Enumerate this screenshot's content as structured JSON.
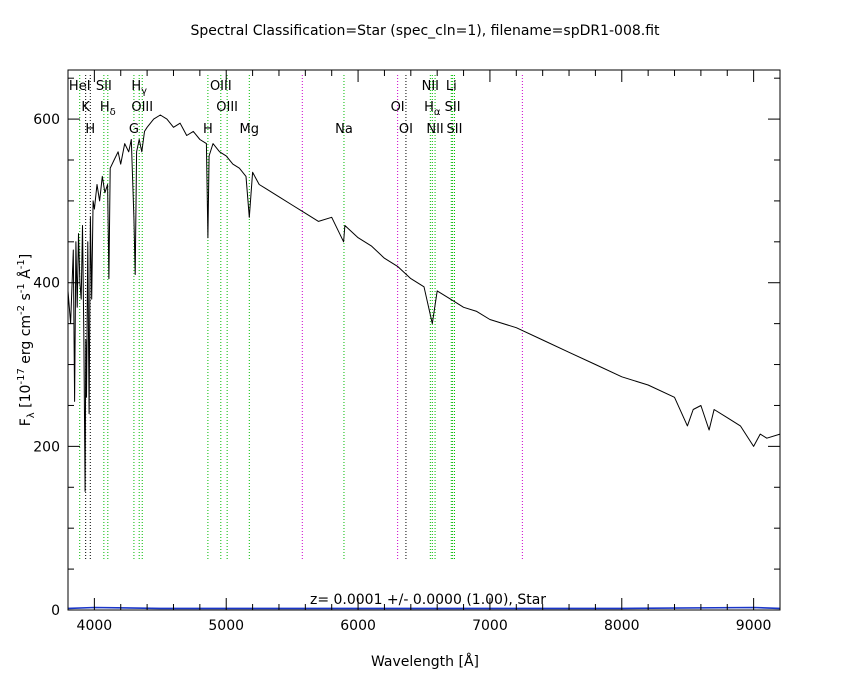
{
  "chart_data": {
    "type": "line",
    "title": "Spectral Classification=Star (spec_cln=1), filename=spDR1-008.fit",
    "xlabel": "Wavelength [Å]",
    "ylabel": "F",
    "ylabel_sub": "λ",
    "ylabel_unit_a": " [10",
    "ylabel_exp1": "-17",
    "ylabel_unit_b": " erg cm",
    "ylabel_exp2": "-2",
    "ylabel_unit_c": " s",
    "ylabel_exp3": "-1",
    "ylabel_unit_d": " Å",
    "ylabel_exp4": "-1",
    "ylabel_unit_e": "]",
    "xlim": [
      3800,
      9200
    ],
    "ylim": [
      0,
      660
    ],
    "x_ticks": [
      4000,
      5000,
      6000,
      7000,
      8000,
      9000
    ],
    "y_ticks": [
      0,
      200,
      400,
      600
    ],
    "annotation": "z= 0.0001 +/- 0.0000 (1.00), Star",
    "series": [
      {
        "color": "#000000",
        "x": [
          3800,
          3820,
          3840,
          3850,
          3860,
          3870,
          3880,
          3890,
          3900,
          3910,
          3920,
          3930,
          3935,
          3940,
          3950,
          3960,
          3970,
          3980,
          3990,
          4000,
          4020,
          4040,
          4060,
          4080,
          4100,
          4110,
          4120,
          4150,
          4180,
          4200,
          4230,
          4260,
          4280,
          4300,
          4310,
          4320,
          4340,
          4360,
          4380,
          4400,
          4450,
          4500,
          4550,
          4600,
          4650,
          4700,
          4750,
          4800,
          4850,
          4861,
          4870,
          4900,
          4950,
          5000,
          5050,
          5100,
          5150,
          5175,
          5200,
          5250,
          5300,
          5400,
          5500,
          5600,
          5700,
          5800,
          5890,
          5900,
          6000,
          6100,
          6200,
          6300,
          6400,
          6500,
          6563,
          6600,
          6700,
          6800,
          6900,
          7000,
          7200,
          7400,
          7600,
          7800,
          8000,
          8200,
          8400,
          8498,
          8542,
          8600,
          8662,
          8700,
          8800,
          8900,
          9000,
          9050,
          9100,
          9200
        ],
        "y": [
          390,
          350,
          440,
          255,
          450,
          370,
          460,
          400,
          380,
          470,
          340,
          145,
          330,
          260,
          450,
          240,
          480,
          380,
          500,
          490,
          520,
          500,
          530,
          510,
          520,
          405,
          540,
          550,
          560,
          545,
          570,
          560,
          575,
          480,
          410,
          560,
          575,
          560,
          585,
          590,
          600,
          605,
          600,
          590,
          595,
          580,
          585,
          575,
          570,
          455,
          555,
          570,
          560,
          555,
          545,
          540,
          530,
          480,
          535,
          520,
          515,
          505,
          495,
          485,
          475,
          480,
          450,
          470,
          455,
          445,
          430,
          420,
          405,
          395,
          350,
          390,
          380,
          370,
          365,
          355,
          345,
          330,
          315,
          300,
          285,
          275,
          260,
          225,
          245,
          250,
          220,
          245,
          235,
          225,
          200,
          215,
          210,
          215
        ]
      },
      {
        "color": "#1a36c8",
        "x": [
          3800,
          4000,
          4500,
          5000,
          6000,
          7000,
          8000,
          9000,
          9200
        ],
        "y": [
          2,
          3,
          2,
          2,
          2,
          2,
          2,
          3,
          2
        ]
      }
    ],
    "lines": [
      {
        "x": 3934,
        "color": "#000000",
        "style": "dot",
        "labels": [
          {
            "text": "K",
            "row": 1
          }
        ]
      },
      {
        "x": 3969,
        "color": "#000000",
        "style": "dot",
        "labels": [
          {
            "text": "H",
            "row": 2
          }
        ]
      },
      {
        "x": 3889,
        "color": "#00bb00",
        "style": "dot",
        "labels": [
          {
            "text": "HeI",
            "row": 0
          }
        ]
      },
      {
        "x": 4072,
        "color": "#00bb00",
        "style": "dot",
        "labels": [
          {
            "text": "SII",
            "row": 0
          }
        ]
      },
      {
        "x": 4102,
        "color": "#00bb00",
        "style": "dot",
        "labels": [
          {
            "text": "H",
            "sub": "δ",
            "row": 1
          }
        ]
      },
      {
        "x": 4300,
        "color": "#00bb00",
        "style": "dot",
        "labels": [
          {
            "text": "G",
            "row": 2
          }
        ]
      },
      {
        "x": 4340,
        "color": "#00bb00",
        "style": "dot",
        "labels": [
          {
            "text": "H",
            "sub": "γ",
            "row": 0
          }
        ]
      },
      {
        "x": 4363,
        "color": "#00bb00",
        "style": "dot",
        "labels": [
          {
            "text": "OIII",
            "row": 1
          }
        ]
      },
      {
        "x": 4861,
        "color": "#00bb00",
        "style": "dot",
        "labels": [
          {
            "text": "H",
            "row": 2
          }
        ]
      },
      {
        "x": 4959,
        "color": "#00bb00",
        "style": "dot",
        "labels": [
          {
            "text": "OIII",
            "row": 0
          }
        ]
      },
      {
        "x": 5007,
        "color": "#00bb00",
        "style": "dot",
        "labels": [
          {
            "text": "OIII",
            "row": 1
          }
        ]
      },
      {
        "x": 5175,
        "color": "#00bb00",
        "style": "dot",
        "labels": [
          {
            "text": "Mg",
            "row": 2
          }
        ]
      },
      {
        "x": 5577,
        "color": "#cc00cc",
        "style": "dot",
        "labels": []
      },
      {
        "x": 5893,
        "color": "#00bb00",
        "style": "dot",
        "labels": [
          {
            "text": "Na",
            "row": 2
          }
        ]
      },
      {
        "x": 6300,
        "color": "#cc00cc",
        "style": "dot",
        "labels": [
          {
            "text": "OI",
            "row": 1
          }
        ]
      },
      {
        "x": 6363,
        "color": "#000000",
        "style": "dot",
        "labels": [
          {
            "text": "OI",
            "row": 2
          }
        ]
      },
      {
        "x": 6548,
        "color": "#00bb00",
        "style": "dot",
        "labels": [
          {
            "text": "NII",
            "row": 0
          }
        ]
      },
      {
        "x": 6563,
        "color": "#00bb00",
        "style": "dot",
        "labels": [
          {
            "text": "H",
            "sub": "α",
            "row": 1
          }
        ]
      },
      {
        "x": 6584,
        "color": "#00bb00",
        "style": "dot",
        "labels": [
          {
            "text": "NII",
            "row": 2
          }
        ]
      },
      {
        "x": 6707,
        "color": "#00bb00",
        "style": "dot",
        "labels": [
          {
            "text": "Li",
            "row": 0
          }
        ]
      },
      {
        "x": 6717,
        "color": "#00bb00",
        "style": "dot",
        "labels": [
          {
            "text": "SII",
            "row": 1
          }
        ]
      },
      {
        "x": 6731,
        "color": "#00bb00",
        "style": "dot",
        "labels": [
          {
            "text": "SII",
            "row": 2
          }
        ]
      },
      {
        "x": 7246,
        "color": "#cc00cc",
        "style": "dot",
        "labels": []
      }
    ]
  }
}
